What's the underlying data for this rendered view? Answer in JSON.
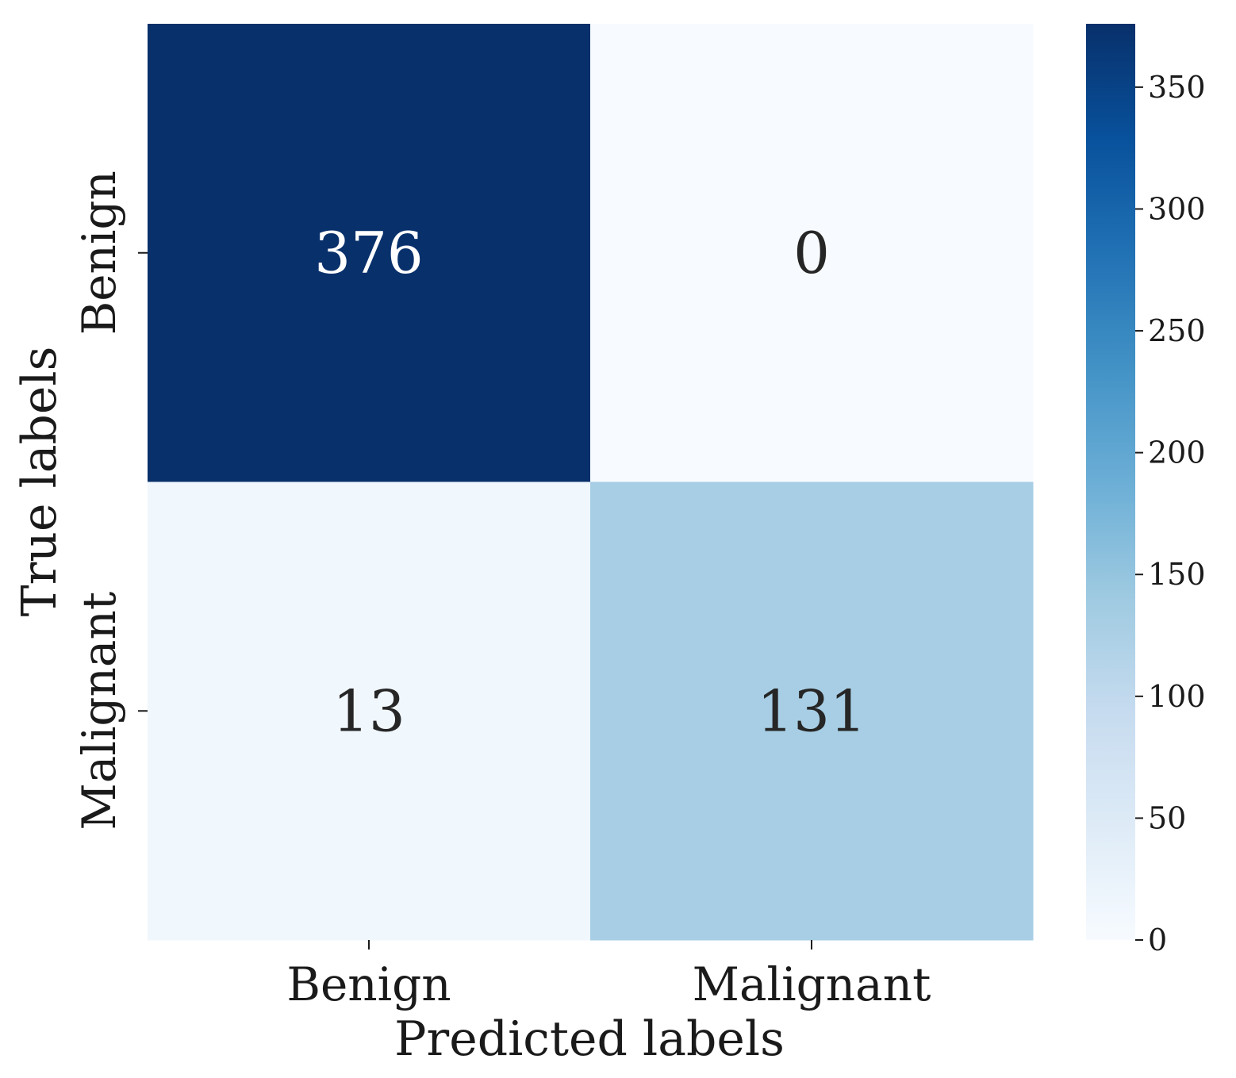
{
  "chart_data": {
    "type": "heatmap",
    "x_categories": [
      "Benign",
      "Malignant"
    ],
    "y_categories": [
      "Benign",
      "Malignant"
    ],
    "values": [
      [
        376,
        0
      ],
      [
        13,
        131
      ]
    ],
    "xlabel": "Predicted labels",
    "ylabel": "True labels",
    "colormap": "Blues",
    "colorbar": {
      "range": [
        0,
        376
      ],
      "ticks": [
        0,
        50,
        100,
        150,
        200,
        250,
        300,
        350
      ],
      "tick_labels": [
        "0",
        "50",
        "100",
        "150",
        "200",
        "250",
        "300",
        "350"
      ]
    },
    "text_colors": {
      "on_dark": "#ffffff",
      "on_light": "#262626"
    },
    "grid": false
  }
}
